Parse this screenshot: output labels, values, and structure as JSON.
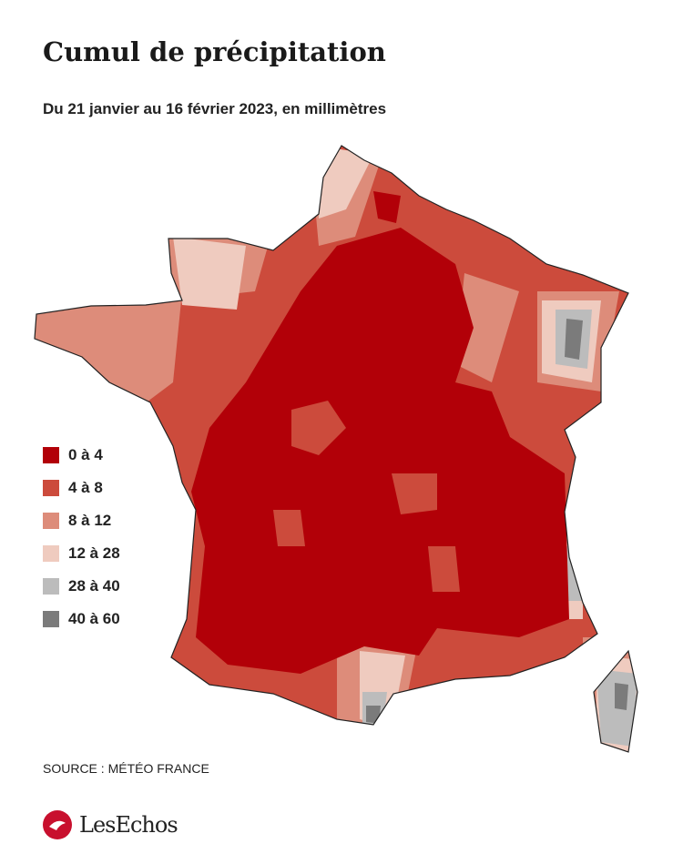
{
  "header": {
    "title": "Cumul de précipitation",
    "subtitle": "Du 21 janvier au 16 février 2023, en millimètres"
  },
  "legend": [
    {
      "label": "0 à 4",
      "color": "#b20008"
    },
    {
      "label": "4 à 8",
      "color": "#cc4b3c"
    },
    {
      "label": "8 à 12",
      "color": "#dd8c7a"
    },
    {
      "label": "12 à 28",
      "color": "#efcbbf"
    },
    {
      "label": "28 à 40",
      "color": "#bcbcbc"
    },
    {
      "label": "40 à 60",
      "color": "#7b7b7b"
    }
  ],
  "footer": {
    "source": "SOURCE : MÉTÉO FRANCE",
    "logo": "LesEchos"
  }
}
